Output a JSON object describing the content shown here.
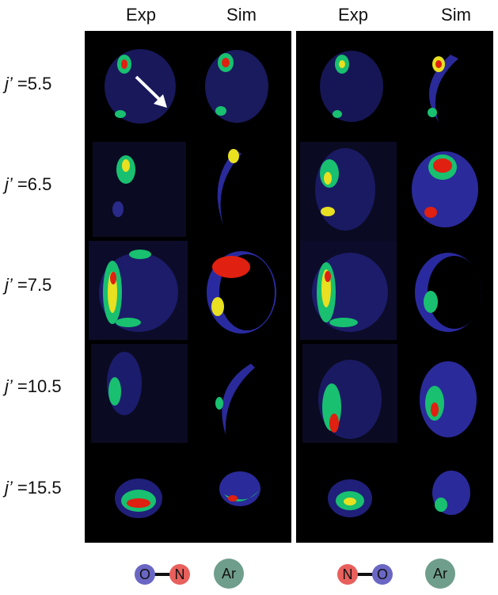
{
  "columns": [
    "Exp",
    "Sim",
    "Exp",
    "Sim"
  ],
  "rows": [
    {
      "prefix": "j’",
      "value": " =5.5"
    },
    {
      "prefix": "j’",
      "value": " =6.5"
    },
    {
      "prefix": "j’",
      "value": " =7.5"
    },
    {
      "prefix": "j’",
      "value": " =10.5"
    },
    {
      "prefix": "j’",
      "value": " =15.5"
    }
  ],
  "legend": {
    "left": {
      "atom1": "O",
      "atom2": "N",
      "partner": "Ar"
    },
    "right": {
      "atom1": "N",
      "atom2": "O",
      "partner": "Ar"
    }
  },
  "colors": {
    "oxygen": "#6a67c4",
    "nitrogen": "#e8605c",
    "argon": "#6f9e8c",
    "panel": "#000000",
    "low": "#2a2a8a",
    "mid": "#18c070",
    "high": "#e8e020",
    "peak": "#e02010"
  }
}
